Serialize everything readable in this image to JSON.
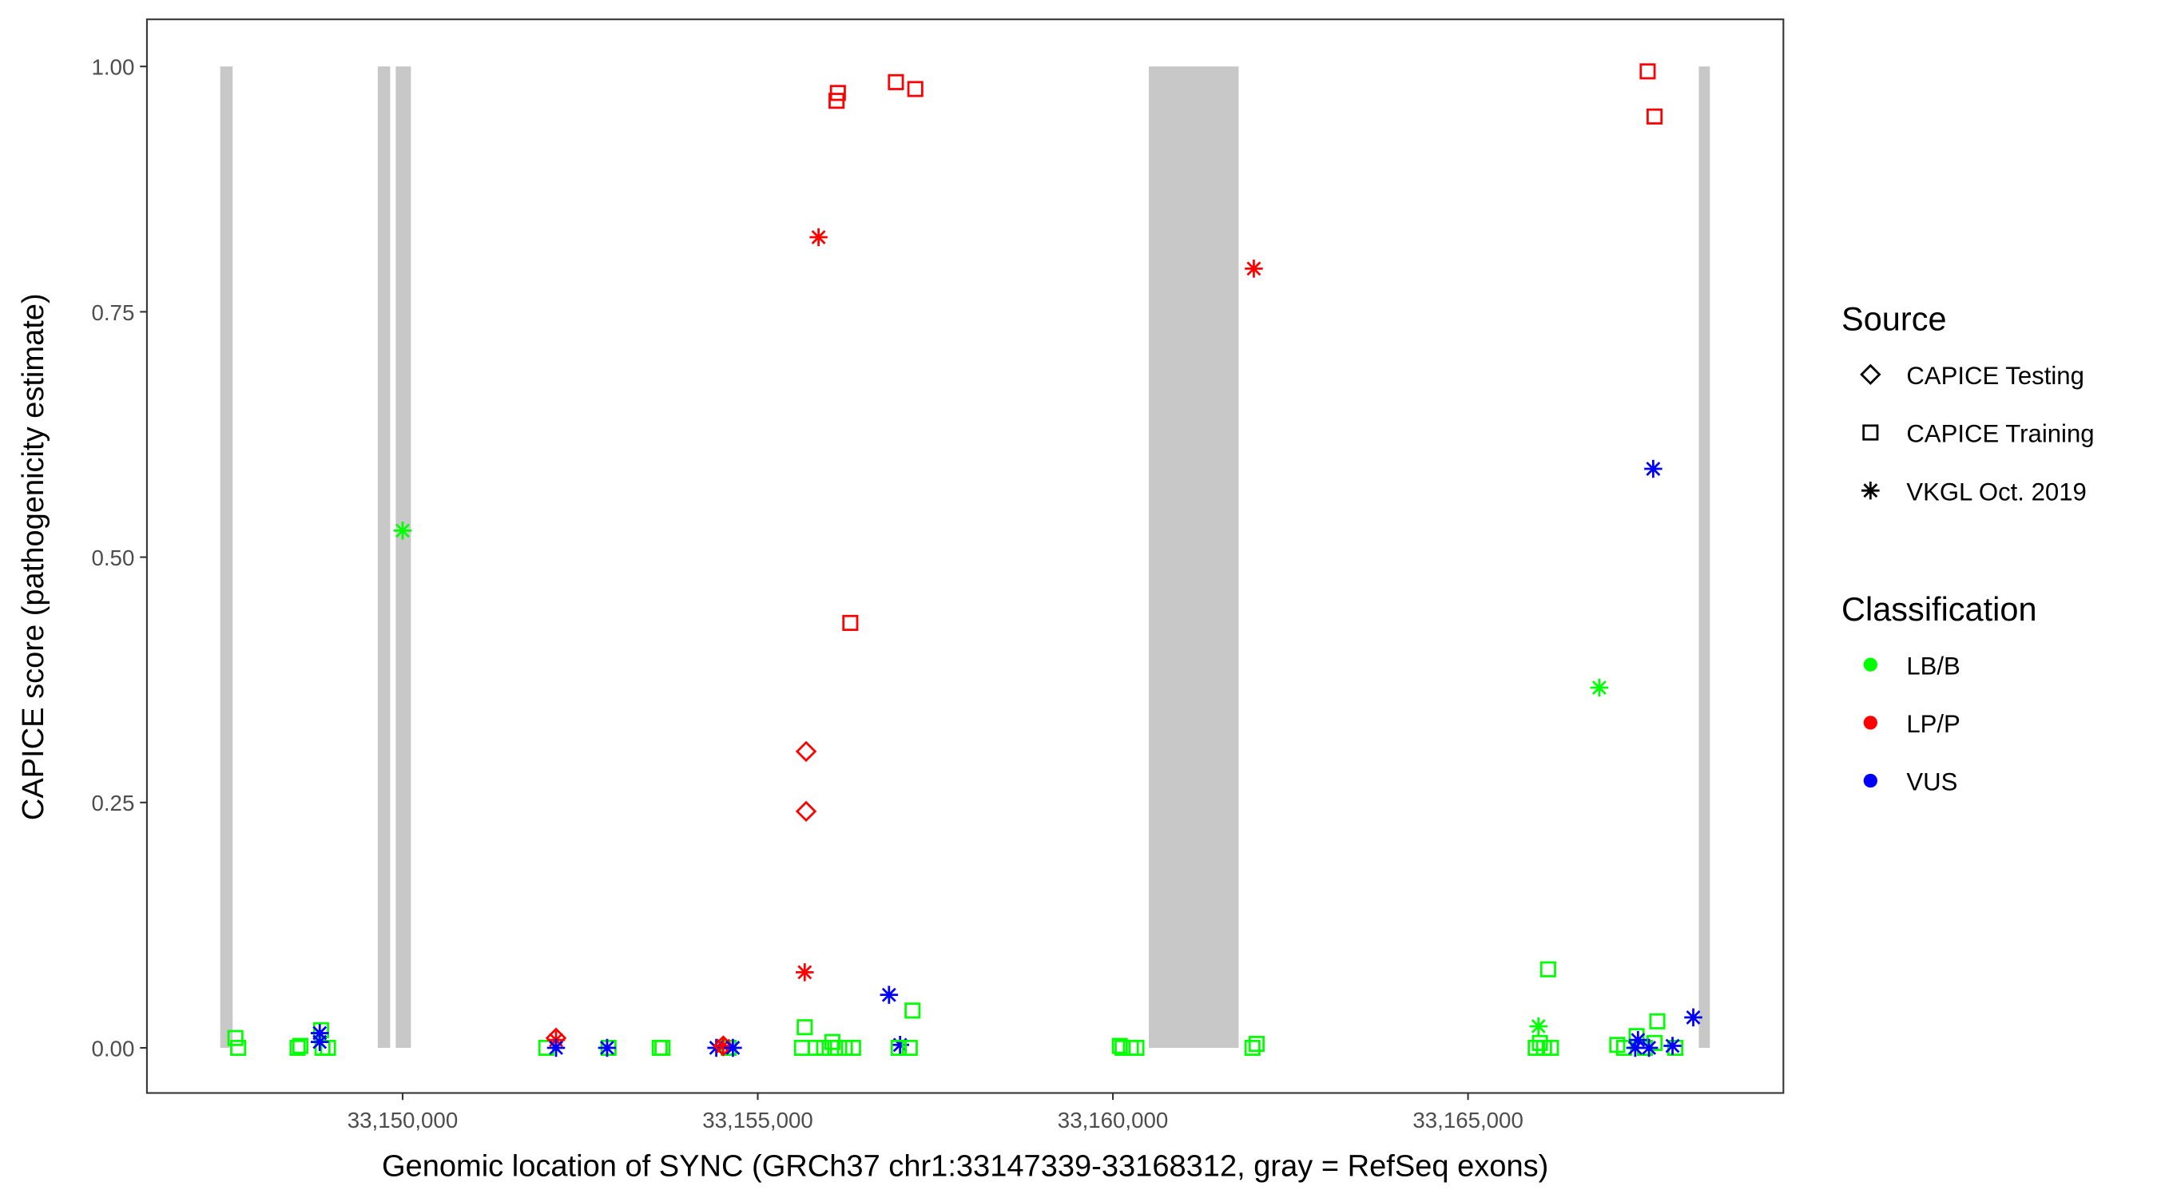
{
  "chart_data": {
    "type": "scatter",
    "xlabel": "Genomic location of SYNC (GRCh37 chr1:33147339-33168312, gray = RefSeq exons)",
    "ylabel": "CAPICE score (pathogenicity estimate)",
    "xlim": [
      33146400,
      33169440
    ],
    "ylim": [
      -0.046,
      1.048
    ],
    "xticks": [
      33150000,
      33155000,
      33160000,
      33165000
    ],
    "xtick_labels": [
      "33,150,000",
      "33,155,000",
      "33,160,000",
      "33,165,000"
    ],
    "yticks": [
      0,
      0.25,
      0.5,
      0.75,
      1
    ],
    "ytick_labels": [
      "0.00",
      "0.25",
      "0.50",
      "0.75",
      "1.00"
    ],
    "grid": false,
    "legend_position": "right",
    "exons": [
      [
        33147432,
        33147607
      ],
      [
        33149650,
        33149825
      ],
      [
        33149903,
        33150117
      ],
      [
        33160506,
        33161770
      ],
      [
        33168249,
        33168405
      ]
    ],
    "exon_color": "#c8c8c8",
    "legend": {
      "source_title": "Source",
      "sources": [
        {
          "key": "testing",
          "label": "CAPICE Testing",
          "shape": "diamond"
        },
        {
          "key": "training",
          "label": "CAPICE Training",
          "shape": "square"
        },
        {
          "key": "vkgl",
          "label": "VKGL Oct. 2019",
          "shape": "asterisk"
        }
      ],
      "class_title": "Classification",
      "classes": [
        {
          "key": "LB/B",
          "label": "LB/B",
          "color": "#00ff00"
        },
        {
          "key": "LP/P",
          "label": "LP/P",
          "color": "#ff0000"
        },
        {
          "key": "VUS",
          "label": "VUS",
          "color": "#0000ff"
        }
      ]
    },
    "points": [
      [
        33147646,
        0.01,
        "training",
        "LB/B"
      ],
      [
        33147685,
        0.0,
        "training",
        "LB/B"
      ],
      [
        33148521,
        0.0,
        "training",
        "LB/B"
      ],
      [
        33148560,
        0.002,
        "training",
        "LB/B"
      ],
      [
        33148852,
        0.018,
        "training",
        "LB/B"
      ],
      [
        33148872,
        0.0,
        "training",
        "LB/B"
      ],
      [
        33148949,
        0.0,
        "training",
        "LB/B"
      ],
      [
        33148833,
        0.015,
        "vkgl",
        "VUS"
      ],
      [
        33148833,
        0.006,
        "vkgl",
        "VUS"
      ],
      [
        33150000,
        0.527,
        "vkgl",
        "LB/B"
      ],
      [
        33152023,
        0.0,
        "training",
        "LB/B"
      ],
      [
        33152160,
        0.01,
        "testing",
        "LP/P"
      ],
      [
        33152160,
        0.008,
        "vkgl",
        "LP/P"
      ],
      [
        33152160,
        0.0,
        "vkgl",
        "VUS"
      ],
      [
        33152899,
        0.0,
        "training",
        "LB/B"
      ],
      [
        33152879,
        0.0,
        "vkgl",
        "VUS"
      ],
      [
        33153619,
        0.0,
        "training",
        "LB/B"
      ],
      [
        33153658,
        0.0,
        "training",
        "LB/B"
      ],
      [
        33154591,
        0.0,
        "training",
        "LB/B"
      ],
      [
        33154416,
        0.0,
        "vkgl",
        "VUS"
      ],
      [
        33154514,
        0.002,
        "testing",
        "LP/P"
      ],
      [
        33154514,
        0.002,
        "vkgl",
        "LP/P"
      ],
      [
        33154650,
        0.0,
        "vkgl",
        "VUS"
      ],
      [
        33155622,
        0.0,
        "training",
        "LB/B"
      ],
      [
        33155661,
        0.021,
        "training",
        "LB/B"
      ],
      [
        33155817,
        0.0,
        "training",
        "LB/B"
      ],
      [
        33155934,
        0.0,
        "training",
        "LB/B"
      ],
      [
        33156050,
        0.006,
        "training",
        "LB/B"
      ],
      [
        33156089,
        0.0,
        "training",
        "LB/B"
      ],
      [
        33156226,
        0.0,
        "training",
        "LB/B"
      ],
      [
        33156342,
        0.0,
        "training",
        "LB/B"
      ],
      [
        33155661,
        0.077,
        "vkgl",
        "LP/P"
      ],
      [
        33155856,
        0.826,
        "vkgl",
        "LP/P"
      ],
      [
        33155681,
        0.302,
        "testing",
        "LP/P"
      ],
      [
        33155681,
        0.241,
        "testing",
        "LP/P"
      ],
      [
        33156128,
        0.973,
        "training",
        "LP/P"
      ],
      [
        33156109,
        0.965,
        "training",
        "LP/P"
      ],
      [
        33156945,
        0.984,
        "training",
        "LP/P"
      ],
      [
        33157218,
        0.977,
        "training",
        "LP/P"
      ],
      [
        33156303,
        0.433,
        "training",
        "LP/P"
      ],
      [
        33156848,
        0.054,
        "vkgl",
        "VUS"
      ],
      [
        33157179,
        0.038,
        "training",
        "LB/B"
      ],
      [
        33157004,
        0.003,
        "vkgl",
        "VUS"
      ],
      [
        33156984,
        0.0,
        "training",
        "LB/B"
      ],
      [
        33157140,
        0.0,
        "training",
        "LB/B"
      ],
      [
        33160097,
        0.002,
        "training",
        "LB/B"
      ],
      [
        33160136,
        0.0,
        "training",
        "LB/B"
      ],
      [
        33160253,
        0.0,
        "training",
        "LB/B"
      ],
      [
        33160331,
        0.0,
        "training",
        "LB/B"
      ],
      [
        33161984,
        0.794,
        "vkgl",
        "LP/P"
      ],
      [
        33161965,
        0.0,
        "training",
        "LB/B"
      ],
      [
        33162023,
        0.004,
        "training",
        "LB/B"
      ],
      [
        33167529,
        0.995,
        "training",
        "LP/P"
      ],
      [
        33167626,
        0.949,
        "training",
        "LP/P"
      ],
      [
        33167607,
        0.59,
        "vkgl",
        "VUS"
      ],
      [
        33166848,
        0.367,
        "vkgl",
        "LB/B"
      ],
      [
        33166128,
        0.08,
        "training",
        "LB/B"
      ],
      [
        33165992,
        0.022,
        "vkgl",
        "LB/B"
      ],
      [
        33165953,
        0.0,
        "training",
        "LB/B"
      ],
      [
        33166012,
        0.005,
        "training",
        "LB/B"
      ],
      [
        33166070,
        0.0,
        "training",
        "LB/B"
      ],
      [
        33166167,
        0.0,
        "training",
        "LB/B"
      ],
      [
        33167101,
        0.003,
        "training",
        "LB/B"
      ],
      [
        33167198,
        0.0,
        "training",
        "LB/B"
      ],
      [
        33167373,
        0.012,
        "training",
        "LB/B"
      ],
      [
        33167490,
        0.0,
        "training",
        "LB/B"
      ],
      [
        33167665,
        0.027,
        "training",
        "LB/B"
      ],
      [
        33167626,
        0.005,
        "training",
        "LB/B"
      ],
      [
        33167918,
        0.0,
        "training",
        "LB/B"
      ],
      [
        33167393,
        0.008,
        "vkgl",
        "VUS"
      ],
      [
        33167354,
        0.0,
        "vkgl",
        "VUS"
      ],
      [
        33167548,
        0.0,
        "vkgl",
        "VUS"
      ],
      [
        33167879,
        0.002,
        "vkgl",
        "VUS"
      ],
      [
        33168171,
        0.031,
        "vkgl",
        "VUS"
      ]
    ]
  }
}
